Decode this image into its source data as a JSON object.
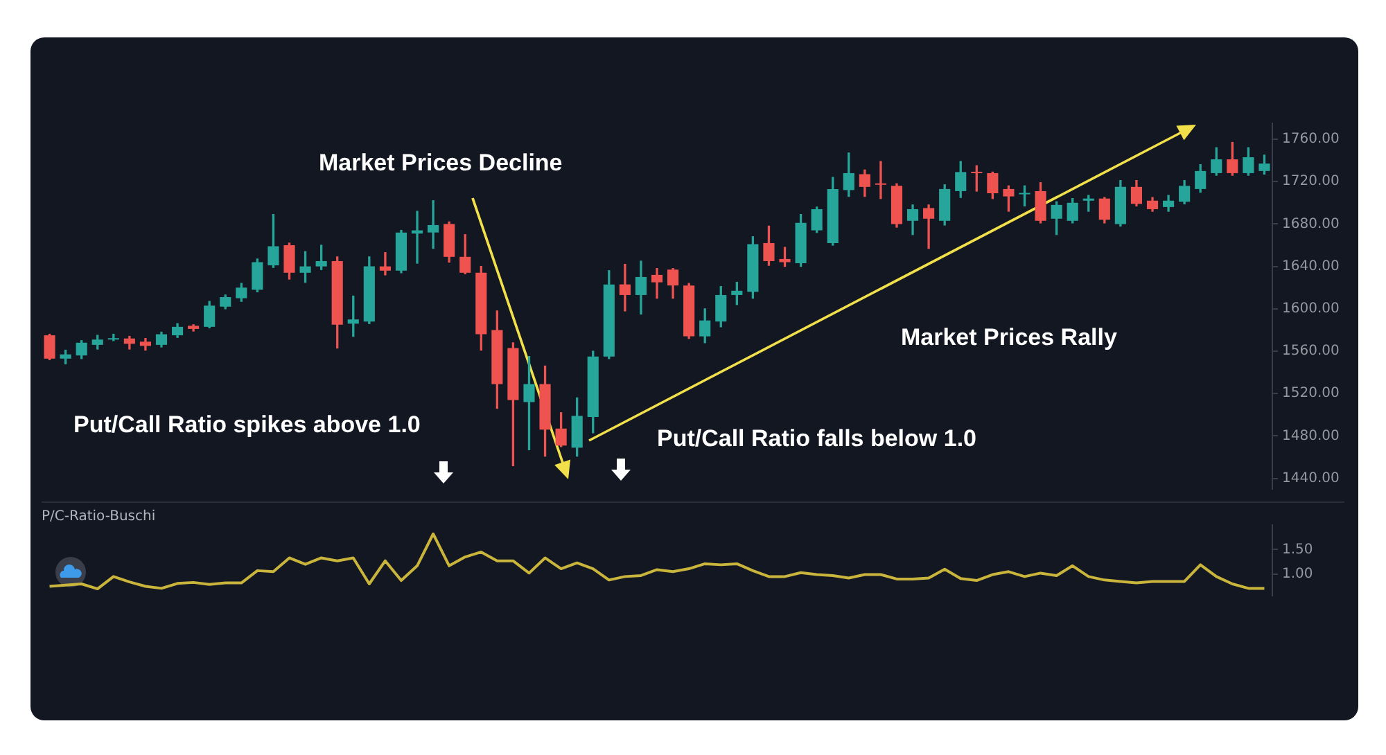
{
  "chart_data": [
    {
      "type": "candlestick",
      "categories": [
        null,
        null,
        null,
        null,
        null,
        null,
        null,
        null,
        null,
        null,
        null,
        null,
        null,
        null,
        null,
        null,
        null,
        null,
        null,
        null,
        null,
        null,
        null,
        null,
        null,
        null,
        null,
        null,
        null,
        null,
        null,
        null,
        null,
        null,
        null,
        null,
        null,
        null,
        null,
        null,
        null,
        null,
        null,
        null,
        null,
        null,
        null,
        null,
        null,
        null,
        null,
        null,
        null,
        null,
        null,
        null,
        null,
        null,
        null,
        null,
        null,
        null,
        null,
        null,
        null,
        null,
        null,
        null,
        null,
        null,
        null,
        null,
        null,
        null,
        null,
        null,
        null
      ],
      "ohlc": [
        [
          1575,
          1576,
          1552,
          1553
        ],
        [
          1553,
          1561,
          1548,
          1557
        ],
        [
          1556,
          1570,
          1553,
          1568
        ],
        [
          1566,
          1575,
          1562,
          1571
        ],
        [
          1571,
          1576,
          1570,
          1572
        ],
        [
          1572,
          1574,
          1562,
          1567
        ],
        [
          1569,
          1572,
          1561,
          1565
        ],
        [
          1566,
          1578,
          1564,
          1576
        ],
        [
          1575,
          1586,
          1573,
          1583
        ],
        [
          1584,
          1585,
          1579,
          1581
        ],
        [
          1583,
          1607,
          1582,
          1603
        ],
        [
          1602,
          1613,
          1600,
          1611
        ],
        [
          1610,
          1624,
          1607,
          1620
        ],
        [
          1618,
          1647,
          1616,
          1644
        ],
        [
          1641,
          1689,
          1639,
          1659
        ],
        [
          1660,
          1662,
          1628,
          1634
        ],
        [
          1634,
          1654,
          1625,
          1640
        ],
        [
          1640,
          1660,
          1637,
          1645
        ],
        [
          1645,
          1649,
          1563,
          1585
        ],
        [
          1586,
          1612,
          1574,
          1590
        ],
        [
          1588,
          1649,
          1586,
          1640
        ],
        [
          1640,
          1653,
          1632,
          1636
        ],
        [
          1636,
          1674,
          1634,
          1672
        ],
        [
          1671,
          1692,
          1643,
          1674
        ],
        [
          1672,
          1702,
          1657,
          1679
        ],
        [
          1680,
          1682,
          1644,
          1649
        ],
        [
          1649,
          1670,
          1633,
          1634
        ],
        [
          1634,
          1640,
          1561,
          1576
        ],
        [
          1580,
          1598,
          1506,
          1529
        ],
        [
          1563,
          1568,
          1452,
          1514
        ],
        [
          1512,
          1555,
          1467,
          1529
        ],
        [
          1529,
          1546,
          1461,
          1486
        ],
        [
          1487,
          1502,
          1470,
          1471
        ],
        [
          1469,
          1516,
          1461,
          1499
        ],
        [
          1498,
          1560,
          1483,
          1555
        ],
        [
          1555,
          1636,
          1553,
          1623
        ],
        [
          1623,
          1642,
          1598,
          1613
        ],
        [
          1613,
          1645,
          1595,
          1630
        ],
        [
          1632,
          1638,
          1610,
          1625
        ],
        [
          1637,
          1638,
          1610,
          1622
        ],
        [
          1622,
          1624,
          1572,
          1574
        ],
        [
          1574,
          1600,
          1568,
          1589
        ],
        [
          1588,
          1621,
          1583,
          1613
        ],
        [
          1613,
          1625,
          1604,
          1617
        ],
        [
          1616,
          1668,
          1610,
          1661
        ],
        [
          1662,
          1678,
          1641,
          1645
        ],
        [
          1647,
          1658,
          1640,
          1644
        ],
        [
          1643,
          1689,
          1640,
          1681
        ],
        [
          1674,
          1696,
          1672,
          1694
        ],
        [
          1662,
          1724,
          1660,
          1713
        ],
        [
          1712,
          1747,
          1706,
          1728
        ],
        [
          1727,
          1731,
          1706,
          1715
        ],
        [
          1718,
          1739,
          1704,
          1717
        ],
        [
          1716,
          1718,
          1677,
          1680
        ],
        [
          1683,
          1698,
          1670,
          1694
        ],
        [
          1695,
          1698,
          1657,
          1685
        ],
        [
          1683,
          1717,
          1679,
          1713
        ],
        [
          1711,
          1739,
          1705,
          1729
        ],
        [
          1729,
          1735,
          1711,
          1728
        ],
        [
          1728,
          1729,
          1704,
          1709
        ],
        [
          1713,
          1716,
          1692,
          1706
        ],
        [
          1708,
          1716,
          1697,
          1709
        ],
        [
          1711,
          1719,
          1681,
          1683
        ],
        [
          1685,
          1701,
          1670,
          1698
        ],
        [
          1683,
          1704,
          1681,
          1700
        ],
        [
          1702,
          1707,
          1692,
          1704
        ],
        [
          1704,
          1705,
          1681,
          1684
        ],
        [
          1680,
          1721,
          1678,
          1715
        ],
        [
          1715,
          1721,
          1697,
          1699
        ],
        [
          1702,
          1705,
          1692,
          1694
        ],
        [
          1696,
          1707,
          1692,
          1702
        ],
        [
          1701,
          1721,
          1699,
          1716
        ],
        [
          1713,
          1736,
          1710,
          1730
        ],
        [
          1728,
          1752,
          1726,
          1741
        ],
        [
          1741,
          1757,
          1726,
          1728
        ],
        [
          1728,
          1752,
          1726,
          1743
        ],
        [
          1730,
          1745,
          1727,
          1737
        ]
      ],
      "colors": [
        "#ef5350",
        "#26a69a",
        "#26a69a",
        "#26a69a",
        "#26a69a",
        "#ef5350",
        "#ef5350",
        "#26a69a",
        "#26a69a",
        "#ef5350",
        "#26a69a",
        "#26a69a",
        "#26a69a",
        "#26a69a",
        "#26a69a",
        "#ef5350",
        "#26a69a",
        "#26a69a",
        "#ef5350",
        "#26a69a",
        "#26a69a",
        "#ef5350",
        "#26a69a",
        "#26a69a",
        "#26a69a",
        "#ef5350",
        "#ef5350",
        "#ef5350",
        "#ef5350",
        "#ef5350",
        "#26a69a",
        "#ef5350",
        "#ef5350",
        "#26a69a",
        "#26a69a",
        "#26a69a",
        "#ef5350",
        "#26a69a",
        "#ef5350",
        "#ef5350",
        "#ef5350",
        "#26a69a",
        "#26a69a",
        "#26a69a",
        "#26a69a",
        "#ef5350",
        "#ef5350",
        "#26a69a",
        "#26a69a",
        "#26a69a",
        "#26a69a",
        "#ef5350",
        "#ef5350",
        "#ef5350",
        "#26a69a",
        "#ef5350",
        "#26a69a",
        "#26a69a",
        "#ef5350",
        "#ef5350",
        "#ef5350",
        "#26a69a",
        "#ef5350",
        "#26a69a",
        "#26a69a",
        "#26a69a",
        "#ef5350",
        "#26a69a",
        "#ef5350",
        "#ef5350",
        "#26a69a",
        "#26a69a",
        "#26a69a",
        "#26a69a",
        "#ef5350",
        "#26a69a",
        "#26a69a"
      ],
      "ylim": [
        1430,
        1775
      ],
      "yticks": [
        {
          "value": 1440,
          "label": "1440.00"
        },
        {
          "value": 1480,
          "label": "1480.00"
        },
        {
          "value": 1520,
          "label": "1520.00"
        },
        {
          "value": 1560,
          "label": "1560.00"
        },
        {
          "value": 1600,
          "label": "1600.00"
        },
        {
          "value": 1640,
          "label": "1640.00"
        },
        {
          "value": 1680,
          "label": "1680.00"
        },
        {
          "value": 1720,
          "label": "1720.00"
        },
        {
          "value": 1760,
          "label": "1760.00"
        }
      ],
      "tick_labels": "y",
      "annotations": [
        "Market Prices Decline",
        "Market Prices Rally",
        "Put/Call Ratio spikes above 1.0",
        "Put/Call Ratio falls below 1.0"
      ]
    },
    {
      "type": "line",
      "title": "P/C-Ratio-Buschi",
      "categories": [
        null,
        null,
        null,
        null,
        null,
        null,
        null,
        null,
        null,
        null,
        null,
        null,
        null,
        null,
        null,
        null,
        null,
        null,
        null,
        null,
        null,
        null,
        null,
        null,
        null,
        null,
        null,
        null,
        null,
        null,
        null,
        null,
        null,
        null,
        null,
        null,
        null,
        null,
        null,
        null,
        null,
        null,
        null,
        null,
        null,
        null,
        null,
        null,
        null,
        null,
        null,
        null,
        null,
        null,
        null,
        null,
        null,
        null,
        null,
        null,
        null,
        null,
        null,
        null,
        null,
        null,
        null,
        null,
        null,
        null,
        null,
        null,
        null,
        null,
        null,
        null,
        null
      ],
      "series": [
        {
          "color": "#c9b43c",
          "values": [
            0.75,
            null,
            0.8,
            0.7,
            0.95,
            0.84,
            0.75,
            0.71,
            0.81,
            0.83,
            0.79,
            0.82,
            0.82,
            1.07,
            1.05,
            1.33,
            1.2,
            1.33,
            1.27,
            1.33,
            0.8,
            1.27,
            0.87,
            1.17,
            1.82,
            1.17,
            1.35,
            1.45,
            1.27,
            1.27,
            1.02,
            1.33,
            1.11,
            1.23,
            1.11,
            0.88,
            0.95,
            0.97,
            1.09,
            1.05,
            1.11,
            1.21,
            1.19,
            1.21,
            1.07,
            0.95,
            0.95,
            1.03,
            0.99,
            0.97,
            0.92,
            0.99,
            0.99,
            0.9,
            0.9,
            0.92,
            1.1,
            0.91,
            0.87,
            0.99,
            1.05,
            0.95,
            1.02,
            0.97,
            1.17,
            0.95,
            0.88,
            0.85,
            0.82,
            0.85,
            0.85,
            0.85,
            1.19,
            0.95,
            0.8,
            0.71,
            0.71
          ]
        }
      ],
      "ylim": [
        0.56,
        2.0
      ],
      "yticks": [
        {
          "value": 1,
          "label": "1.00"
        },
        {
          "value": 1.5,
          "label": "1.50"
        }
      ],
      "tick_labels": "y"
    }
  ]
}
